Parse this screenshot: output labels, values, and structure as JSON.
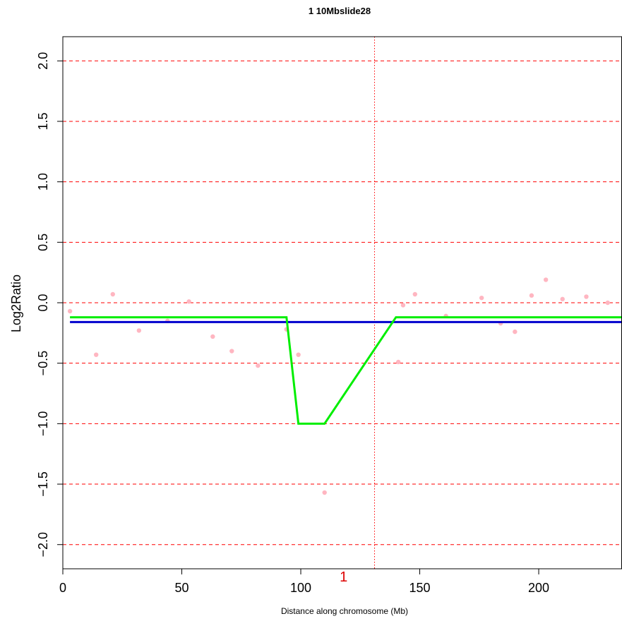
{
  "chart_data": {
    "type": "scatter",
    "title": "1   10Mbslide28",
    "xlabel": "Distance along chromosome (Mb)",
    "ylabel": "Log2Ratio",
    "xlim": [
      0,
      235
    ],
    "ylim": [
      -2.2,
      2.2
    ],
    "xticks": [
      0,
      50,
      100,
      150,
      200
    ],
    "yticks": [
      -2.0,
      -1.5,
      -1.0,
      -0.5,
      0.0,
      0.5,
      1.0,
      1.5,
      2.0
    ],
    "ytick_labels": [
      "−2.0",
      "−1.5",
      "−1.0",
      "−0.5",
      "0.0",
      "0.5",
      "1.0",
      "1.5",
      "2.0"
    ],
    "grid": "dashed horizontal lines at y ticks",
    "vline_x": 131,
    "marker_label": {
      "text": "1",
      "x": 118
    },
    "colors": {
      "grid": "#ff0000",
      "points": "#ffb6c1",
      "mean_line": "#0000cd",
      "segment_line": "#00ee00",
      "marker_label": "#dd0000"
    },
    "series": [
      {
        "type": "scatter",
        "points": [
          [
            3,
            -0.07
          ],
          [
            14,
            -0.43
          ],
          [
            21,
            0.07
          ],
          [
            32,
            -0.23
          ],
          [
            44,
            -0.15
          ],
          [
            53,
            0.01
          ],
          [
            63,
            -0.28
          ],
          [
            71,
            -0.4
          ],
          [
            82,
            -0.52
          ],
          [
            94,
            -0.22
          ],
          [
            99,
            -0.43
          ],
          [
            110,
            -1.57
          ],
          [
            141,
            -0.49
          ],
          [
            143,
            -0.02
          ],
          [
            148,
            0.07
          ],
          [
            161,
            -0.11
          ],
          [
            176,
            0.04
          ],
          [
            184,
            -0.17
          ],
          [
            190,
            -0.24
          ],
          [
            197,
            0.06
          ],
          [
            203,
            0.19
          ],
          [
            210,
            0.03
          ],
          [
            220,
            0.05
          ],
          [
            229,
            0.0
          ]
        ]
      },
      {
        "type": "line",
        "points": [
          [
            3,
            -0.16
          ],
          [
            235,
            -0.16
          ]
        ]
      },
      {
        "type": "line",
        "points": [
          [
            3,
            -0.12
          ],
          [
            94,
            -0.12
          ],
          [
            99,
            -1.0
          ],
          [
            110,
            -1.0
          ],
          [
            140,
            -0.12
          ],
          [
            235,
            -0.12
          ]
        ]
      }
    ]
  }
}
